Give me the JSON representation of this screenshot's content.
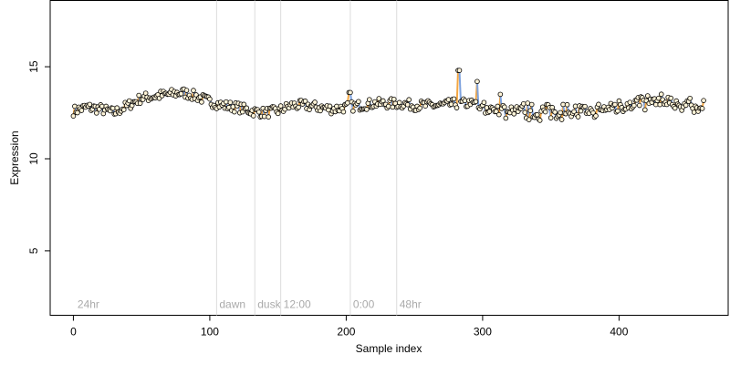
{
  "chart_data": {
    "type": "scatter",
    "title": "",
    "xlabel": "Sample index",
    "ylabel": "Expression",
    "xlim": [
      -17,
      480
    ],
    "ylim": [
      1.5,
      18.6
    ],
    "xticks": [
      0,
      100,
      200,
      300,
      400
    ],
    "yticks": [
      5,
      10,
      15
    ],
    "grid": false,
    "n_points": 463,
    "baseline": {
      "x": [
        0,
        10,
        20,
        30,
        40,
        50,
        60,
        70,
        80,
        90,
        100,
        110,
        120,
        130,
        140,
        150,
        160,
        170,
        180,
        190,
        200,
        210,
        220,
        230,
        240,
        250,
        260,
        270,
        280,
        290,
        300,
        310,
        320,
        330,
        340,
        350,
        360,
        370,
        380,
        390,
        400,
        410,
        420,
        430,
        440,
        450,
        462
      ],
      "y": [
        12.6,
        12.8,
        12.7,
        12.5,
        12.9,
        13.3,
        13.4,
        13.5,
        13.6,
        13.4,
        13.1,
        12.9,
        12.8,
        12.6,
        12.5,
        12.6,
        12.9,
        12.9,
        12.8,
        12.7,
        12.8,
        12.9,
        13.0,
        13.0,
        13.0,
        12.9,
        12.9,
        12.9,
        13.0,
        13.0,
        12.8,
        12.7,
        12.6,
        12.6,
        12.5,
        12.6,
        12.6,
        12.5,
        12.5,
        12.7,
        12.9,
        13.0,
        13.1,
        13.1,
        13.0,
        12.9,
        12.8
      ]
    },
    "spikes": [
      {
        "x": 202,
        "y": 13.6
      },
      {
        "x": 203,
        "y": 13.6
      },
      {
        "x": 282,
        "y": 14.8
      },
      {
        "x": 283,
        "y": 14.8
      },
      {
        "x": 296,
        "y": 14.2
      },
      {
        "x": 313,
        "y": 13.5
      }
    ],
    "event_lines": [
      {
        "x": 105,
        "label": "dawn"
      },
      {
        "x": 133,
        "label": "dusk"
      },
      {
        "x": 152,
        "label": "12:00"
      },
      {
        "x": 203,
        "label": "0:00"
      },
      {
        "x": 237,
        "label": "48hr"
      }
    ],
    "corner_label": {
      "x": 3,
      "label": "24hr"
    },
    "colors": {
      "point_fill": "#fff4d8",
      "point_edge": "#000000",
      "segment_up": "#f4a742",
      "segment_down": "#7fa3de",
      "event_line": "#dcdcdc",
      "event_text": "#aaaaaa"
    }
  }
}
